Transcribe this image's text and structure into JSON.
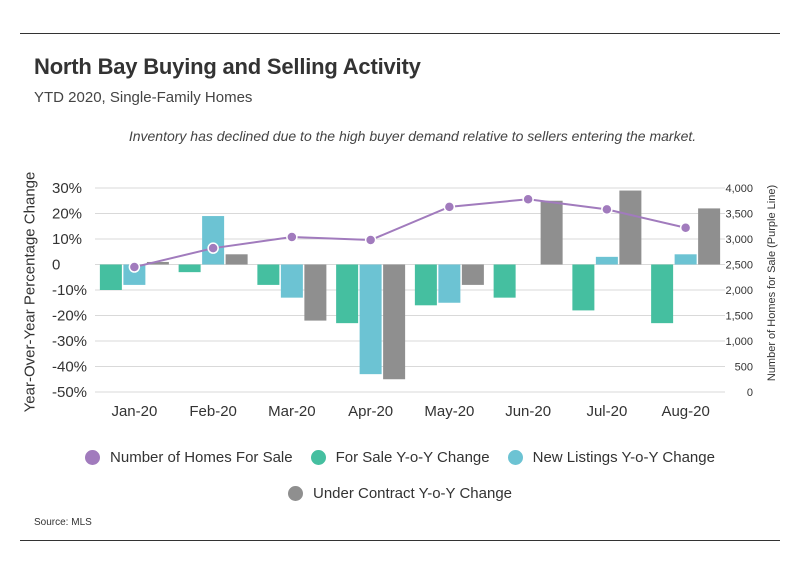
{
  "header": {
    "title": "North Bay Buying and Selling Activity",
    "subtitle": "YTD 2020, Single-Family Homes",
    "annotation": "Inventory has declined due to the high buyer demand relative to sellers entering the market."
  },
  "footer": {
    "source": "Source:  MLS"
  },
  "colors": {
    "for_sale_line": "#a17bbd",
    "for_sale_yoy": "#45bfa0",
    "new_listings_yoy": "#6cc3d3",
    "under_contract_yoy": "#8f8f8f",
    "grid": "#d9d9d9",
    "text": "#333333"
  },
  "chart_data": {
    "type": "bar",
    "categories": [
      "Jan-20",
      "Feb-20",
      "Mar-20",
      "Apr-20",
      "May-20",
      "Jun-20",
      "Jul-20",
      "Aug-20"
    ],
    "ylabel": "Year-Over-Year Percentage Change",
    "y2label": "Number of Homes for Sale (Purple Line)",
    "ylim": [
      -50,
      30
    ],
    "yticks": [
      30,
      20,
      10,
      0,
      -10,
      -20,
      -30,
      -40,
      -50
    ],
    "yticklabels": [
      "30%",
      "20%",
      "10%",
      "0",
      "-10%",
      "-20%",
      "-30%",
      "-40%",
      "-50%"
    ],
    "y2lim": [
      0,
      4000
    ],
    "y2ticks": [
      4000,
      3500,
      3000,
      2500,
      2000,
      1500,
      1000,
      500,
      0
    ],
    "y2ticklabels": [
      "4,000",
      "3,500",
      "3,000",
      "2,500",
      "2,000",
      "1,500",
      "1,000",
      "500",
      "0"
    ],
    "grid": true,
    "legend_position": "bottom",
    "series": [
      {
        "name": "For Sale Y-o-Y Change",
        "kind": "bar",
        "axis": "left",
        "values": [
          -10,
          -3,
          -8,
          -23,
          -16,
          -13,
          -18,
          -23
        ]
      },
      {
        "name": "New Listings Y-o-Y Change",
        "kind": "bar",
        "axis": "left",
        "values": [
          -8,
          19,
          -13,
          -43,
          -15,
          0,
          3,
          4
        ]
      },
      {
        "name": "Under Contract Y-o-Y Change",
        "kind": "bar",
        "axis": "left",
        "values": [
          1,
          4,
          -22,
          -45,
          -8,
          25,
          29,
          22
        ]
      },
      {
        "name": "Number of Homes For Sale",
        "kind": "line",
        "axis": "right",
        "values": [
          2450,
          2820,
          3040,
          2980,
          3630,
          3780,
          3580,
          3220
        ]
      }
    ]
  },
  "legend": {
    "row1": [
      "Number of Homes For Sale",
      "For Sale Y-o-Y Change",
      "New Listings Y-o-Y Change"
    ],
    "row2": [
      "Under Contract Y-o-Y Change"
    ]
  }
}
